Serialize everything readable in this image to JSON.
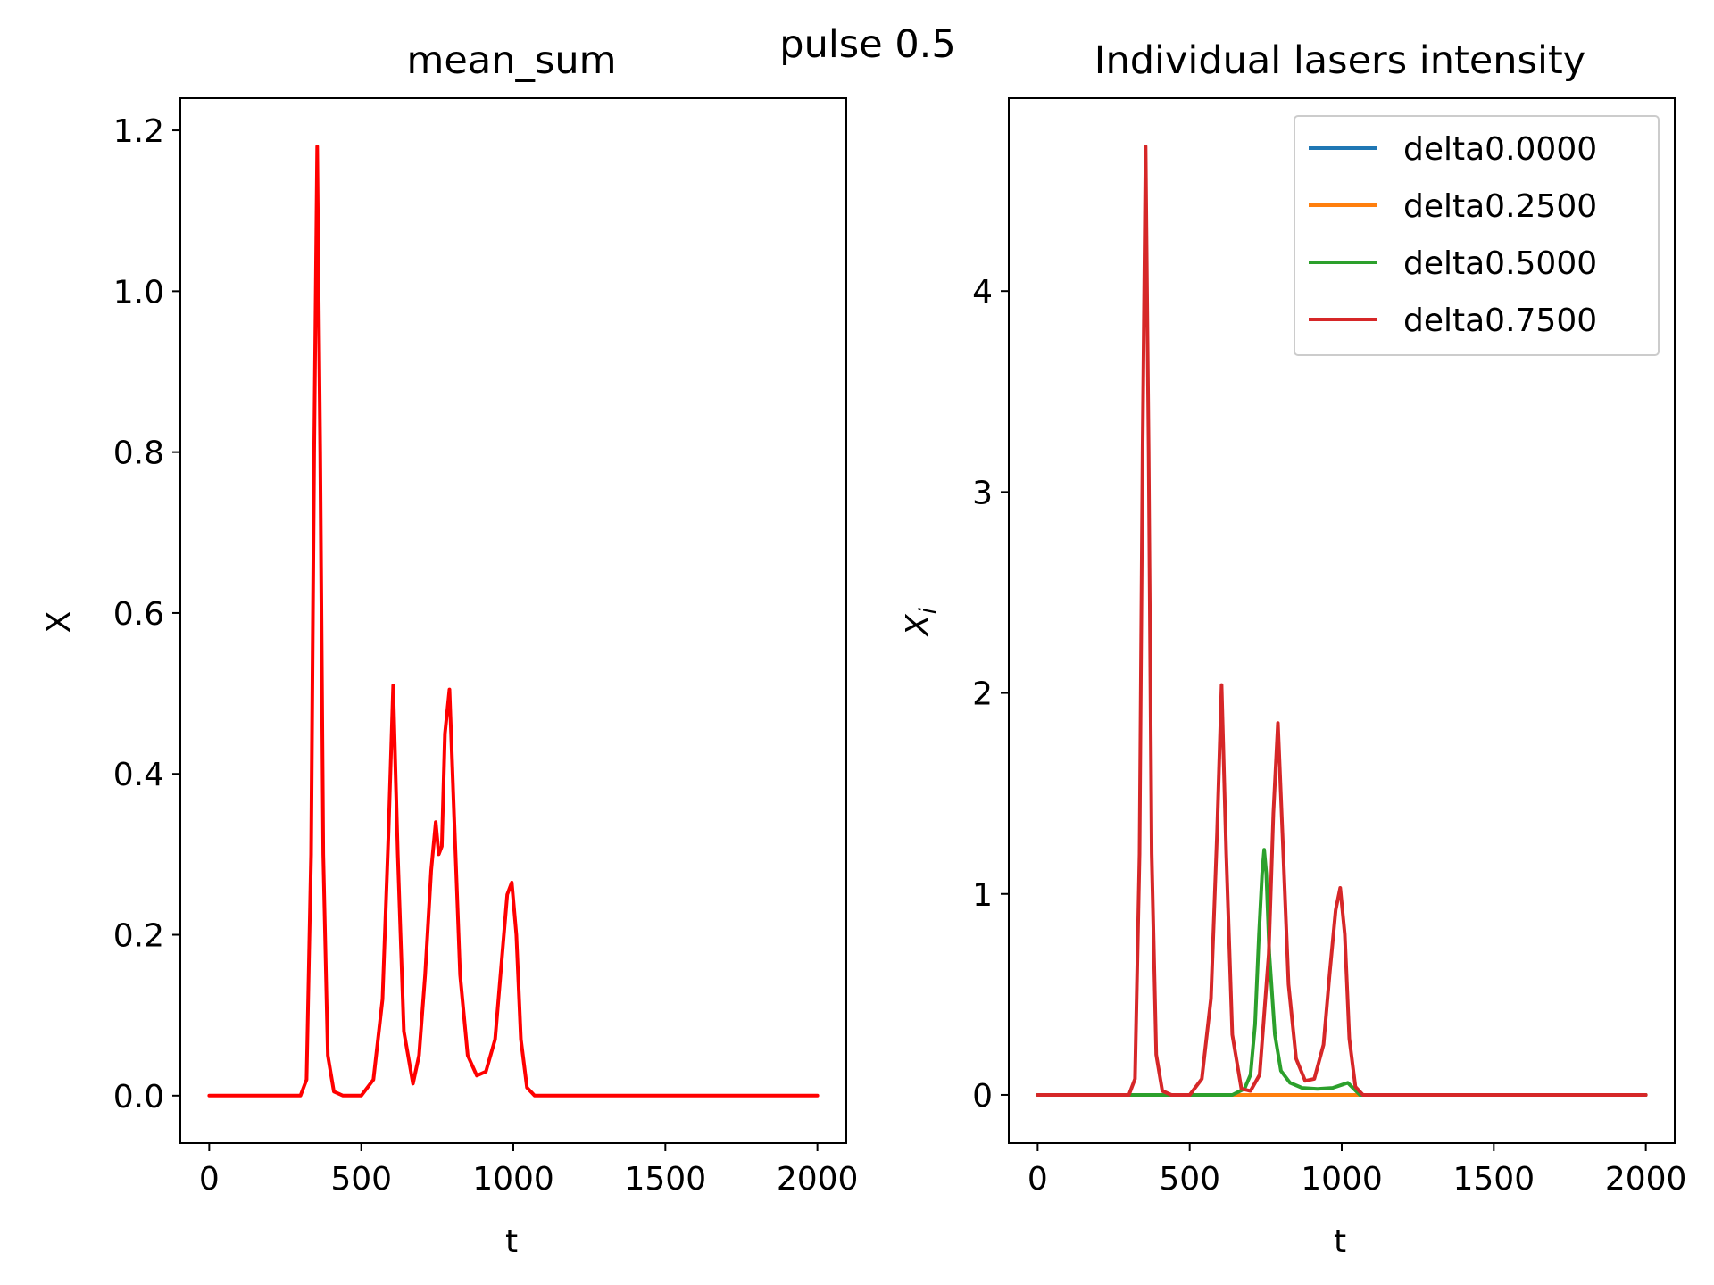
{
  "figure": {
    "suptitle": "pulse 0.5"
  },
  "chart_data": [
    {
      "type": "line",
      "title": "mean_sum",
      "xlabel": "t",
      "ylabel": "X",
      "xlim": [
        -95,
        2095
      ],
      "ylim": [
        -0.059,
        1.24
      ],
      "xticks": [
        0,
        500,
        1000,
        1500,
        2000
      ],
      "xtick_labels": [
        "0",
        "500",
        "1000",
        "1500",
        "2000"
      ],
      "yticks": [
        0.0,
        0.2,
        0.4,
        0.6,
        0.8,
        1.0,
        1.2
      ],
      "ytick_labels": [
        "0.0",
        "0.2",
        "0.4",
        "0.6",
        "0.8",
        "1.0",
        "1.2"
      ],
      "grid": false,
      "series": [
        {
          "color": "#ff0000",
          "x": [
            0,
            300,
            320,
            335,
            345,
            355,
            365,
            375,
            390,
            410,
            440,
            500,
            540,
            570,
            590,
            605,
            620,
            640,
            670,
            690,
            710,
            730,
            745,
            755,
            765,
            775,
            790,
            805,
            825,
            850,
            880,
            910,
            940,
            960,
            980,
            995,
            1010,
            1025,
            1045,
            1070,
            1100,
            1200,
            2000
          ],
          "y": [
            0.0,
            0.0,
            0.02,
            0.3,
            0.8,
            1.18,
            0.8,
            0.3,
            0.05,
            0.005,
            0.0,
            0.0,
            0.02,
            0.12,
            0.33,
            0.51,
            0.3,
            0.08,
            0.015,
            0.05,
            0.15,
            0.28,
            0.34,
            0.3,
            0.31,
            0.45,
            0.505,
            0.35,
            0.15,
            0.05,
            0.025,
            0.03,
            0.07,
            0.16,
            0.25,
            0.265,
            0.2,
            0.07,
            0.01,
            0.0,
            0.0,
            0.0,
            0.0
          ]
        }
      ]
    },
    {
      "type": "line",
      "title": "Individual lasers intensity",
      "xlabel": "t",
      "ylabel": "X_i",
      "ylabel_main": "X",
      "ylabel_sub": "i",
      "xlim": [
        -95,
        2095
      ],
      "ylim": [
        -0.24,
        4.96
      ],
      "xticks": [
        0,
        500,
        1000,
        1500,
        2000
      ],
      "xtick_labels": [
        "0",
        "500",
        "1000",
        "1500",
        "2000"
      ],
      "yticks": [
        0,
        1,
        2,
        3,
        4
      ],
      "ytick_labels": [
        "0",
        "1",
        "2",
        "3",
        "4"
      ],
      "grid": false,
      "legend": "top-right",
      "series": [
        {
          "name": "delta0.0000",
          "color": "#1f77b4",
          "x": [
            0,
            2000
          ],
          "y": [
            0,
            0
          ]
        },
        {
          "name": "delta0.2500",
          "color": "#ff7f0e",
          "x": [
            0,
            2000
          ],
          "y": [
            0,
            0
          ]
        },
        {
          "name": "delta0.5000",
          "color": "#2ca02c",
          "x": [
            0,
            640,
            680,
            700,
            715,
            728,
            738,
            745,
            752,
            762,
            780,
            800,
            830,
            870,
            920,
            970,
            1000,
            1020,
            1040,
            1060,
            1100,
            2000
          ],
          "y": [
            0,
            0,
            0.03,
            0.1,
            0.35,
            0.8,
            1.1,
            1.22,
            1.1,
            0.7,
            0.3,
            0.12,
            0.06,
            0.035,
            0.03,
            0.035,
            0.05,
            0.06,
            0.03,
            0.0,
            0.0,
            0.0
          ]
        },
        {
          "name": "delta0.7500",
          "color": "#d62728",
          "x": [
            0,
            300,
            320,
            335,
            345,
            355,
            365,
            375,
            390,
            410,
            440,
            500,
            540,
            570,
            590,
            605,
            620,
            640,
            670,
            700,
            730,
            760,
            775,
            790,
            805,
            825,
            850,
            880,
            910,
            940,
            960,
            980,
            995,
            1010,
            1025,
            1045,
            1070,
            1100,
            2000
          ],
          "y": [
            0,
            0,
            0.08,
            1.2,
            3.2,
            4.72,
            3.2,
            1.2,
            0.2,
            0.02,
            0.0,
            0.0,
            0.08,
            0.48,
            1.3,
            2.04,
            1.2,
            0.3,
            0.03,
            0.02,
            0.1,
            0.7,
            1.4,
            1.85,
            1.3,
            0.55,
            0.18,
            0.07,
            0.08,
            0.25,
            0.6,
            0.92,
            1.03,
            0.8,
            0.28,
            0.04,
            0.0,
            0.0,
            0.0
          ]
        }
      ]
    }
  ]
}
